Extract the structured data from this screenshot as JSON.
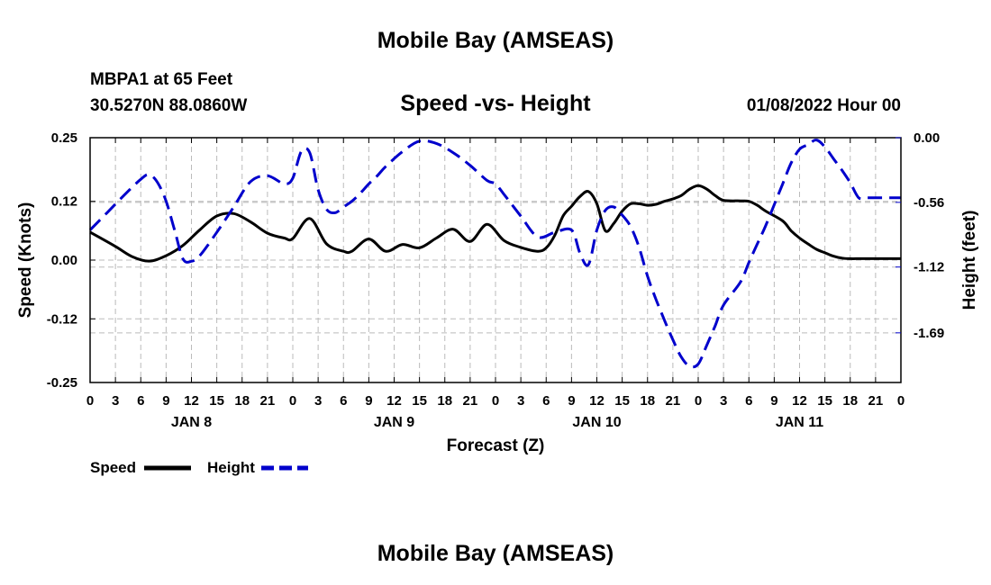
{
  "header": {
    "title": "Mobile Bay (AMSEAS)",
    "station": "MBPA1 at 65 Feet",
    "location": "30.5270N  88.0860W",
    "run_time": "01/08/2022 Hour 00",
    "footer_title": "Mobile Bay (AMSEAS)"
  },
  "legend": {
    "speed_label": "Speed",
    "height_label": "Height"
  },
  "colors": {
    "speed": "#000000",
    "height": "#0000cc",
    "grid": "#bbbbbb"
  },
  "chart_data": {
    "type": "line",
    "title": "Speed -vs- Height",
    "xlabel": "Forecast (Z)",
    "ylabel": "Speed (Knots)",
    "y2label": "Height (feet)",
    "xlim": [
      0,
      96
    ],
    "ylim": [
      -0.25,
      0.25
    ],
    "y2lim": [
      -2.12,
      0.0
    ],
    "y_ticks": [
      "0.25",
      "0.12",
      "0.00",
      "-0.12",
      "-0.25"
    ],
    "y_tick_values": [
      0.25,
      0.12,
      0.0,
      -0.12,
      -0.25
    ],
    "y2_ticks": [
      "0.00",
      "-0.56",
      "-1.12",
      "-1.69"
    ],
    "y2_tick_values": [
      0.0,
      -0.56,
      -1.12,
      -1.69
    ],
    "x_tick_labels": [
      "0",
      "3",
      "6",
      "9",
      "12",
      "15",
      "18",
      "21",
      "0",
      "3",
      "6",
      "9",
      "12",
      "15",
      "18",
      "21",
      "0",
      "3",
      "6",
      "9",
      "12",
      "15",
      "18",
      "21",
      "0",
      "3",
      "6",
      "9",
      "12",
      "15",
      "18",
      "21",
      "0"
    ],
    "day_labels": [
      {
        "label": "JAN 8",
        "hour": 12
      },
      {
        "label": "JAN 9",
        "hour": 36
      },
      {
        "label": "JAN 10",
        "hour": 60
      },
      {
        "label": "JAN 11",
        "hour": 84
      }
    ],
    "grid": true,
    "legend_position": "bottom-left",
    "series": [
      {
        "name": "Speed",
        "axis": "left",
        "style": "solid",
        "x": [
          0,
          3,
          5,
          7,
          9,
          11,
          13,
          15,
          17,
          19,
          21,
          23,
          24,
          26,
          28,
          30,
          31,
          33,
          35,
          37,
          39,
          41,
          43,
          45,
          47,
          49,
          51,
          53,
          54,
          55,
          56,
          57,
          58,
          59,
          60,
          61,
          62,
          63,
          64,
          65,
          66,
          67,
          68,
          69,
          70,
          71,
          72,
          73,
          74,
          75,
          77,
          78,
          79,
          80,
          82,
          83,
          84,
          85,
          86,
          87,
          88,
          89,
          90,
          91,
          92,
          93,
          94,
          95,
          96
        ],
        "y": [
          0.057,
          0.028,
          0.007,
          -0.002,
          0.009,
          0.03,
          0.062,
          0.09,
          0.095,
          0.078,
          0.055,
          0.045,
          0.044,
          0.085,
          0.033,
          0.018,
          0.018,
          0.043,
          0.018,
          0.032,
          0.025,
          0.045,
          0.063,
          0.038,
          0.073,
          0.04,
          0.026,
          0.018,
          0.025,
          0.05,
          0.09,
          0.11,
          0.13,
          0.14,
          0.115,
          0.06,
          0.075,
          0.1,
          0.115,
          0.115,
          0.112,
          0.114,
          0.12,
          0.125,
          0.132,
          0.145,
          0.152,
          0.145,
          0.132,
          0.122,
          0.121,
          0.12,
          0.112,
          0.1,
          0.08,
          0.06,
          0.045,
          0.033,
          0.022,
          0.015,
          0.008,
          0.004,
          0.003,
          0.003,
          0.003,
          0.003,
          0.003,
          0.003,
          0.003
        ]
      },
      {
        "name": "Height",
        "axis": "right",
        "style": "dashed",
        "x": [
          0,
          2,
          4,
          6,
          7,
          8,
          9,
          10,
          11,
          12,
          13,
          15,
          17,
          19,
          21,
          23,
          24,
          25,
          26,
          27,
          28,
          29,
          30,
          31,
          32,
          33,
          34,
          35,
          37,
          39,
          41,
          43,
          45,
          47,
          48,
          49,
          51,
          53,
          55,
          57,
          58,
          59,
          60,
          61,
          62,
          63,
          64,
          65,
          66,
          67,
          68,
          69,
          70,
          71,
          72,
          73,
          74,
          75,
          77,
          78,
          79,
          80,
          81,
          82,
          83,
          84,
          85,
          86,
          87,
          88,
          89,
          90,
          91,
          92,
          93,
          94,
          95,
          96
        ],
        "y": [
          -0.8,
          -0.65,
          -0.5,
          -0.36,
          -0.32,
          -0.39,
          -0.55,
          -0.8,
          -1.05,
          -1.07,
          -1.02,
          -0.82,
          -0.6,
          -0.38,
          -0.33,
          -0.4,
          -0.35,
          -0.12,
          -0.13,
          -0.45,
          -0.62,
          -0.65,
          -0.6,
          -0.55,
          -0.48,
          -0.4,
          -0.33,
          -0.25,
          -0.12,
          -0.03,
          -0.05,
          -0.13,
          -0.24,
          -0.37,
          -0.4,
          -0.49,
          -0.68,
          -0.86,
          -0.82,
          -0.8,
          -1.0,
          -1.1,
          -0.8,
          -0.63,
          -0.6,
          -0.67,
          -0.77,
          -0.95,
          -1.2,
          -1.4,
          -1.58,
          -1.75,
          -1.9,
          -1.98,
          -1.96,
          -1.8,
          -1.63,
          -1.45,
          -1.25,
          -1.08,
          -0.92,
          -0.76,
          -0.58,
          -0.4,
          -0.22,
          -0.1,
          -0.06,
          -0.02,
          -0.08,
          -0.18,
          -0.28,
          -0.39,
          -0.52,
          -0.52,
          -0.52,
          -0.52,
          -0.52,
          -0.52
        ]
      }
    ]
  }
}
